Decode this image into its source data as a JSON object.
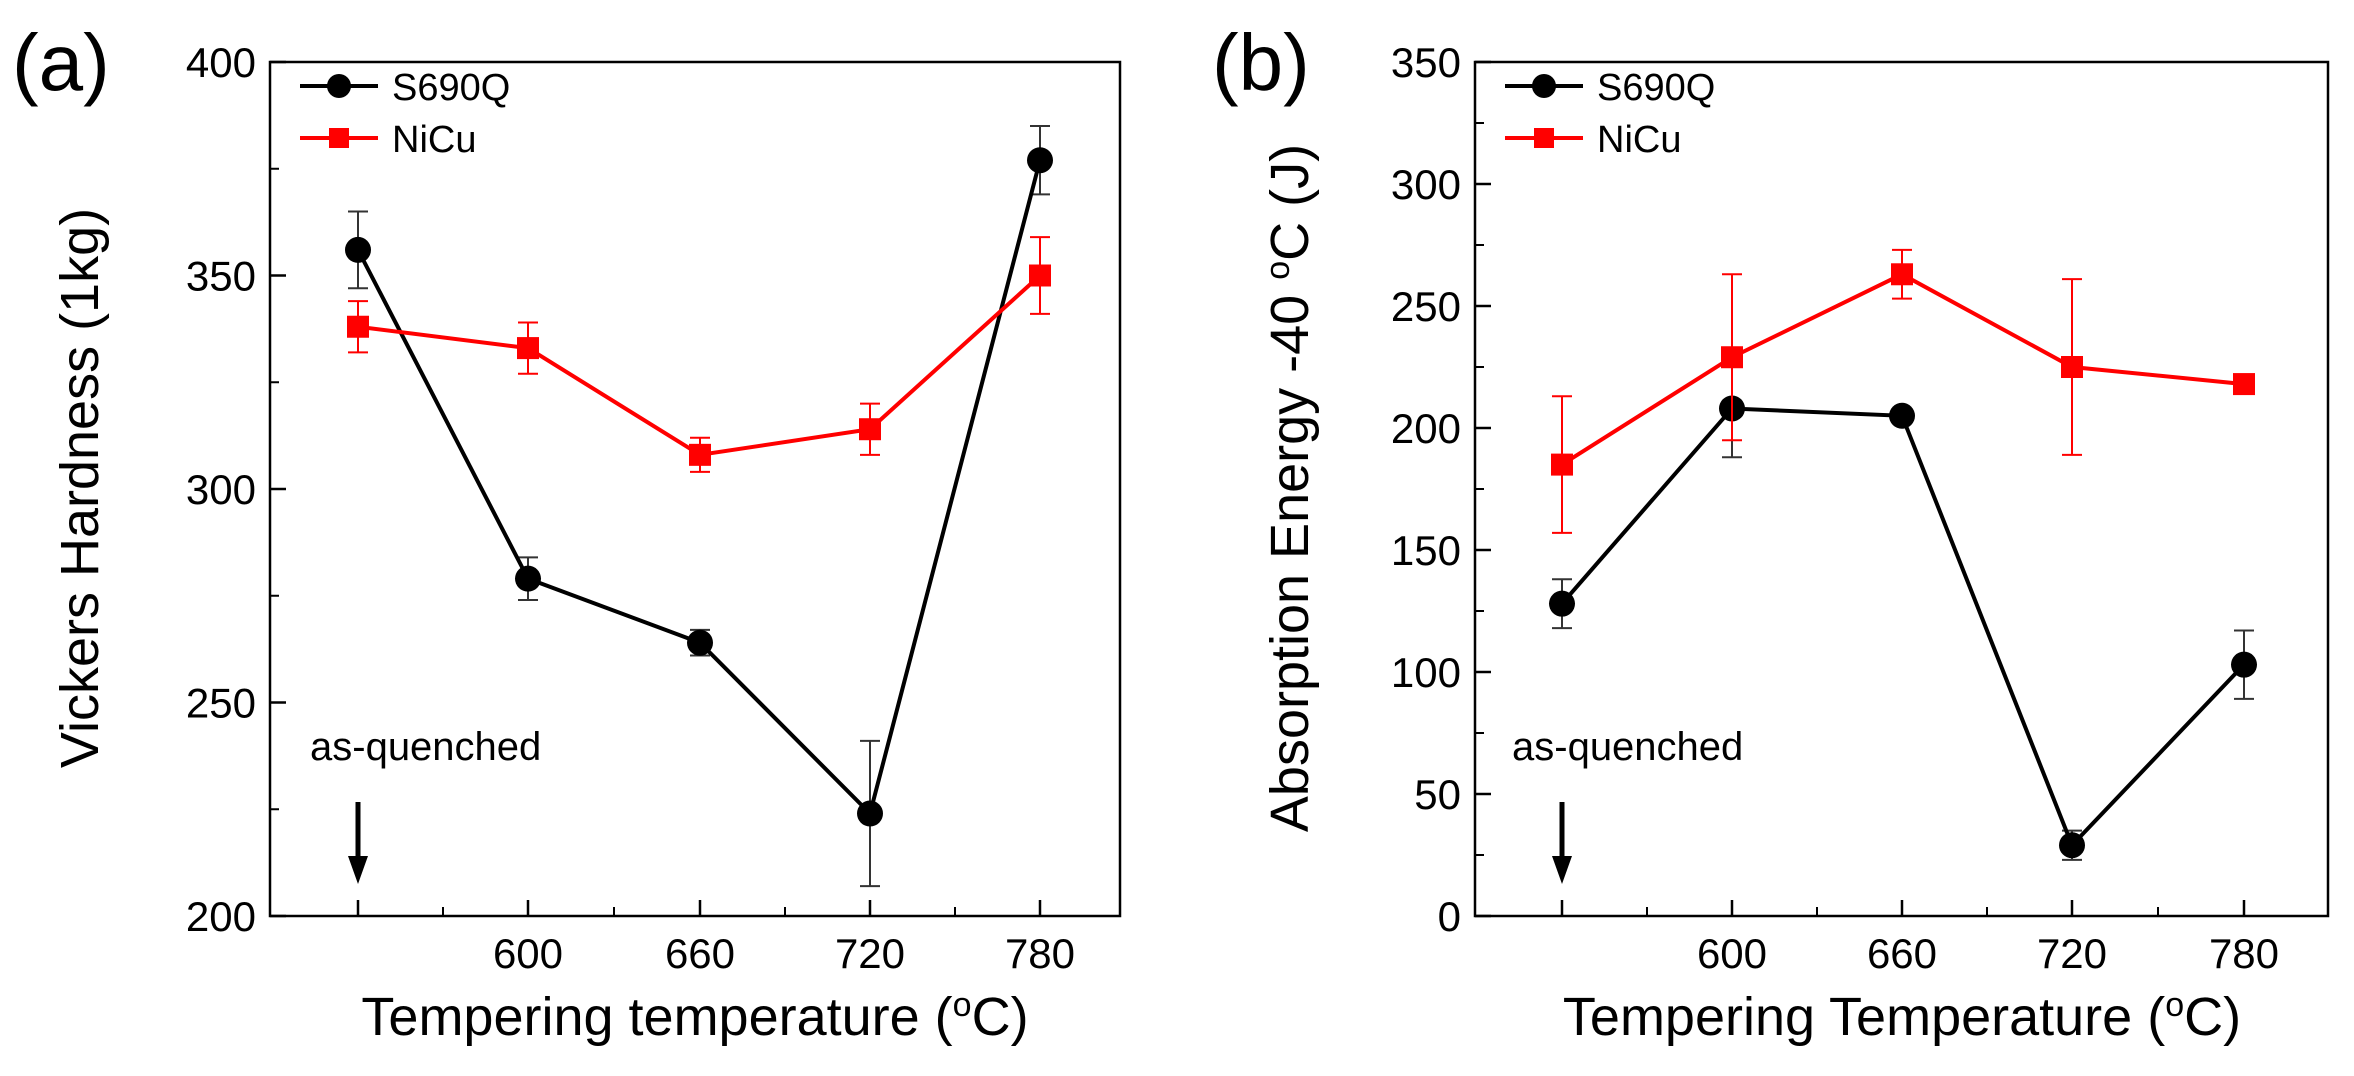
{
  "chart_data": [
    {
      "type": "line",
      "panel_label": "(a)",
      "xlabel": "Tempering temperature (",
      "xlabel_sup": "o",
      "xlabel_unit": "C)",
      "ylabel": "Vickers Hardness (1kg)",
      "categories": [
        "as-quenched",
        "600",
        "660",
        "720",
        "780"
      ],
      "tick_labels": [
        "",
        "600",
        "660",
        "720",
        "780"
      ],
      "ylim": [
        200,
        400
      ],
      "yticks": [
        200,
        250,
        300,
        350,
        400
      ],
      "annotation": "as-quenched",
      "series": [
        {
          "name": "S690Q",
          "color": "#000000",
          "marker": "circle",
          "values": [
            356,
            279,
            264,
            224,
            377
          ],
          "errors": [
            9,
            5,
            3,
            17,
            8
          ]
        },
        {
          "name": "NiCu",
          "color": "#ff0000",
          "marker": "square",
          "values": [
            338,
            333,
            308,
            314,
            350
          ],
          "errors": [
            6,
            6,
            4,
            6,
            9
          ]
        }
      ]
    },
    {
      "type": "line",
      "panel_label": "(b)",
      "xlabel": "Tempering Temperature (",
      "xlabel_sup": "o",
      "xlabel_unit": "C)",
      "ylabel": "Absorption Energy -40 ",
      "ylabel_sup": "o",
      "ylabel_unit": "C (J)",
      "categories": [
        "as-quenched",
        "600",
        "660",
        "720",
        "780"
      ],
      "tick_labels": [
        "",
        "600",
        "660",
        "720",
        "780"
      ],
      "ylim": [
        0,
        350
      ],
      "yticks": [
        0,
        50,
        100,
        150,
        200,
        250,
        300,
        350
      ],
      "annotation": "as-quenched",
      "series": [
        {
          "name": "S690Q",
          "color": "#000000",
          "marker": "circle",
          "values": [
            128,
            208,
            205,
            29,
            103
          ],
          "errors": [
            10,
            20,
            0,
            6,
            14
          ]
        },
        {
          "name": "NiCu",
          "color": "#ff0000",
          "marker": "square",
          "values": [
            185,
            229,
            263,
            225,
            218
          ],
          "errors": [
            28,
            34,
            10,
            36,
            0
          ]
        }
      ]
    }
  ]
}
